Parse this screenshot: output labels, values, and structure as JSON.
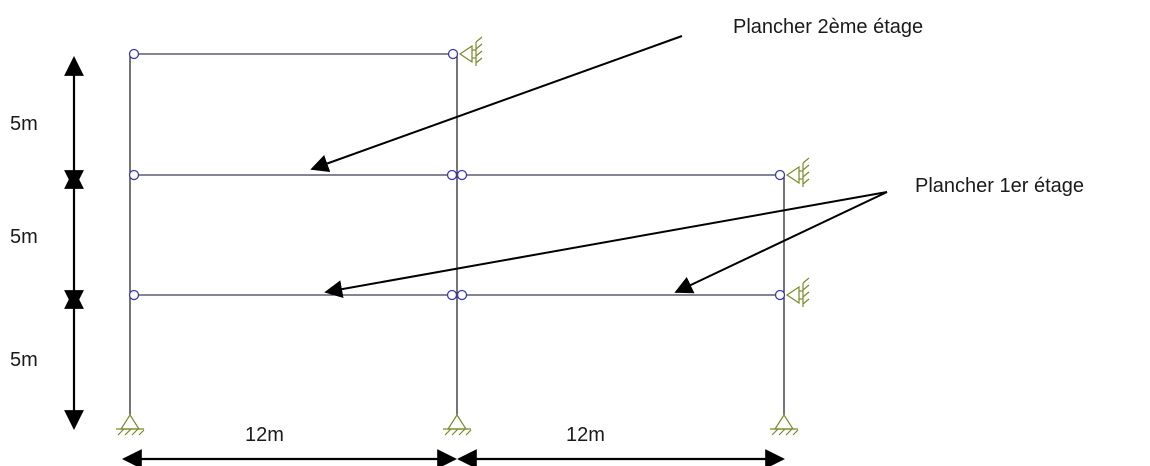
{
  "labels": {
    "floor_2": "Plancher 2ème étage",
    "floor_1": "Plancher 1er étage",
    "height_top": "5m",
    "height_middle": "5m",
    "height_bottom": "5m",
    "span_left": "12m",
    "span_right": "12m"
  },
  "colors": {
    "member": "#2b2b2b",
    "hinge": "#3a3ab0",
    "support": "#7a8a2a",
    "arrow": "#000000",
    "text": "#1a1a1a"
  }
}
